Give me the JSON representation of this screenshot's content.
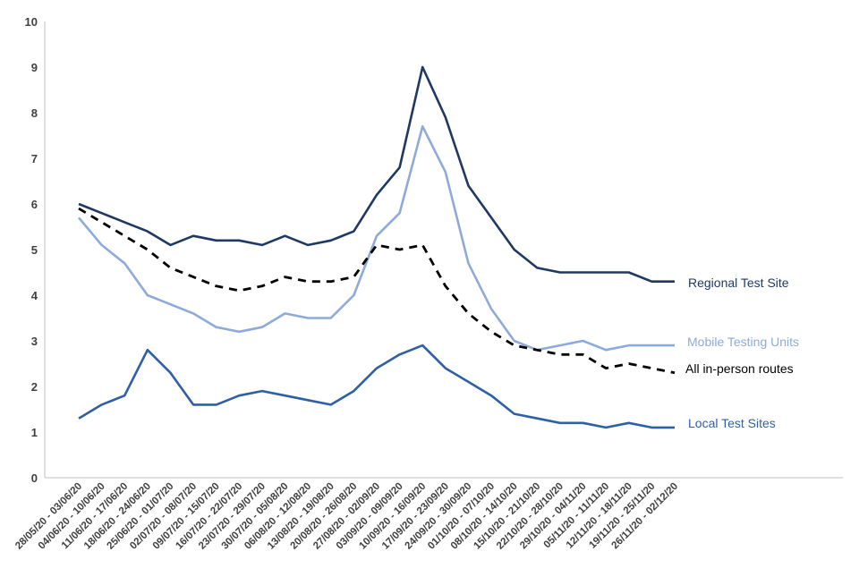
{
  "chart_data": {
    "type": "line",
    "title": "",
    "xlabel": "",
    "ylabel": "",
    "ylim": [
      0,
      10
    ],
    "yticks": [
      0,
      1,
      2,
      3,
      4,
      5,
      6,
      7,
      8,
      9,
      10
    ],
    "grid": false,
    "legend": "inline-right",
    "categories": [
      "28/05/20 - 03/06/20",
      "04/06/20 - 10/06/20",
      "11/06/20 - 17/06/20",
      "18/06/20 - 24/06/20",
      "25/06/20 - 01/07/20",
      "02/07/20 - 08/07/20",
      "09/07/20 - 15/07/20",
      "16/07/20 - 22/07/20",
      "23/07/20 - 29/07/20",
      "30/07/20 - 05/08/20",
      "06/08/20 - 12/08/20",
      "13/08/20 - 19/08/20",
      "20/08/20 - 26/08/20",
      "27/08/20 - 02/09/20",
      "03/09/20 - 09/09/20",
      "10/09/20 - 16/09/20",
      "17/09/20 - 23/09/20",
      "24/09/20 - 30/09/20",
      "01/10/20 - 07/10/20",
      "08/10/20 - 14/10/20",
      "15/10/20 - 21/10/20",
      "22/10/20 - 28/10/20",
      "29/10/20 - 04/11/20",
      "05/11/20 - 11/11/20",
      "12/11/20 - 18/11/20",
      "19/11/20 - 25/11/20",
      "26/11/20 - 02/12/20"
    ],
    "series": [
      {
        "name": "Regional Test Site",
        "color": "#1f3864",
        "dashed": false,
        "values": [
          6.0,
          5.8,
          5.6,
          5.4,
          5.1,
          5.3,
          5.2,
          5.2,
          5.1,
          5.3,
          5.1,
          5.2,
          5.4,
          6.2,
          6.8,
          9.0,
          7.9,
          6.4,
          5.7,
          5.0,
          4.6,
          4.5,
          4.5,
          4.5,
          4.5,
          4.3,
          4.3
        ]
      },
      {
        "name": "Mobile Testing Units",
        "color": "#8eaadb",
        "dashed": false,
        "values": [
          5.7,
          5.1,
          4.7,
          4.0,
          3.8,
          3.6,
          3.3,
          3.2,
          3.3,
          3.6,
          3.5,
          3.5,
          4.0,
          5.3,
          5.8,
          7.7,
          6.7,
          4.7,
          3.7,
          3.0,
          2.8,
          2.9,
          3.0,
          2.8,
          2.9,
          2.9,
          2.9
        ]
      },
      {
        "name": "All in-person routes",
        "color": "#000000",
        "dashed": true,
        "values": [
          5.9,
          5.6,
          5.3,
          5.0,
          4.6,
          4.4,
          4.2,
          4.1,
          4.2,
          4.4,
          4.3,
          4.3,
          4.4,
          5.1,
          5.0,
          5.1,
          4.2,
          3.6,
          3.2,
          2.9,
          2.8,
          2.7,
          2.7,
          2.4,
          2.5,
          2.4,
          2.3
        ]
      },
      {
        "name": "Local Test Sites",
        "color": "#2f5fa5",
        "dashed": false,
        "values": [
          1.3,
          1.6,
          1.8,
          2.8,
          2.3,
          1.6,
          1.6,
          1.8,
          1.9,
          1.8,
          1.7,
          1.6,
          1.9,
          2.4,
          2.7,
          2.9,
          2.4,
          2.1,
          1.8,
          1.4,
          1.3,
          1.2,
          1.2,
          1.1,
          1.2,
          1.1,
          1.1
        ]
      }
    ]
  }
}
